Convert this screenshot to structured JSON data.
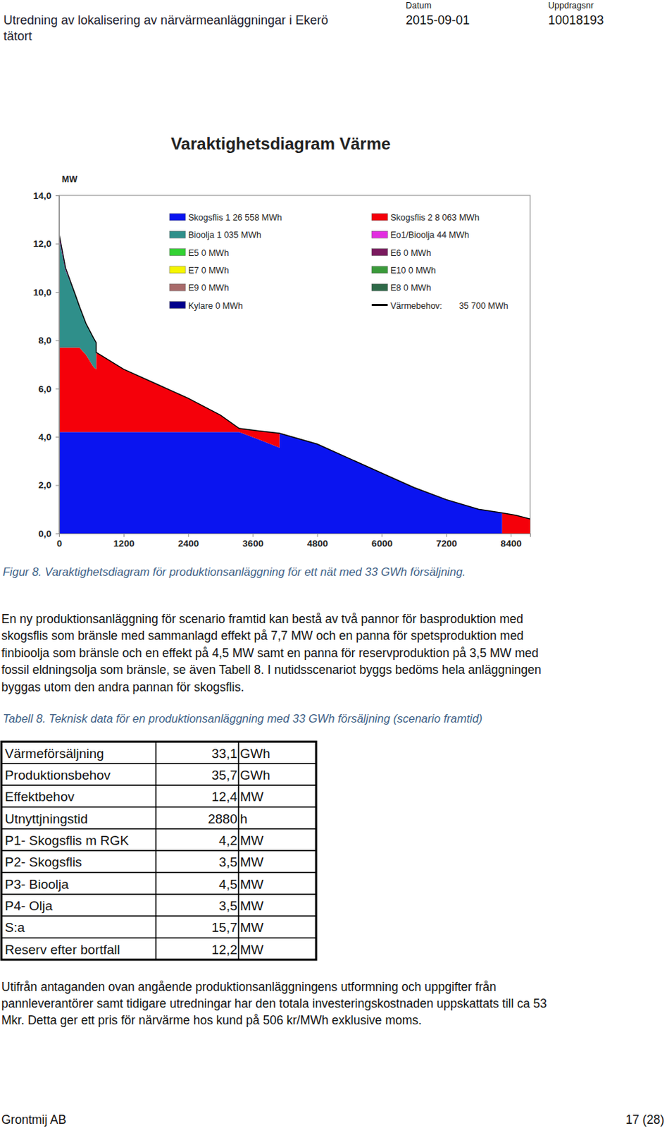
{
  "header": {
    "title_lines": [
      "Utredning av lokalisering av närvärmeanläggningar i Ekerö",
      "tätort"
    ],
    "date_label": "Datum",
    "date": "2015-09-01",
    "assignment_label": "Uppdragsnr",
    "assignment": "10018193"
  },
  "chart_data": {
    "type": "area",
    "stacked": true,
    "title": "Varaktighetsdiagram Värme",
    "y_label": "MW",
    "legend": "top-right",
    "grid": false,
    "xlim": [
      0,
      8760
    ],
    "ylim": [
      0,
      14
    ],
    "xticks": [
      0,
      1200,
      2400,
      3600,
      4800,
      6000,
      7200,
      8400
    ],
    "yticks": [
      {
        "value": 0,
        "label": "0,0"
      },
      {
        "value": 2,
        "label": "2,0"
      },
      {
        "value": 4,
        "label": "4,0"
      },
      {
        "value": 6,
        "label": "6,0"
      },
      {
        "value": 8,
        "label": "8,0"
      },
      {
        "value": 10,
        "label": "10,0"
      },
      {
        "value": 12,
        "label": "12,0"
      },
      {
        "value": 14,
        "label": "14,0"
      }
    ],
    "x": [
      0,
      120,
      300,
      380,
      500,
      640,
      690,
      690,
      1200,
      1800,
      2400,
      3000,
      3350,
      3700,
      4100,
      4100,
      4800,
      5400,
      6000,
      6600,
      7200,
      7800,
      8240,
      8240,
      8500,
      8760
    ],
    "series": [
      {
        "name": "Skogsflis 1 26 558 MWh",
        "color": "#0a14f0",
        "values": [
          4.2,
          4.2,
          4.2,
          4.2,
          4.2,
          4.2,
          4.2,
          4.2,
          4.2,
          4.2,
          4.2,
          4.2,
          4.2,
          3.9,
          3.55,
          4.15,
          3.7,
          3.1,
          2.5,
          1.9,
          1.4,
          1.0,
          0.85,
          0,
          0,
          0
        ]
      },
      {
        "name": "Skogsflis 2 8 063 MWh",
        "color": "#f5000a",
        "values": [
          3.5,
          3.5,
          3.5,
          3.5,
          3.2,
          2.7,
          2.6,
          3.3,
          2.6,
          2.0,
          1.4,
          0.7,
          0.15,
          0.35,
          0.6,
          0,
          0,
          0,
          0,
          0,
          0,
          0,
          0,
          0.85,
          0.75,
          0.6
        ]
      },
      {
        "name": "Bioolja 1 035 MWh",
        "color": "#2f8f8a",
        "values": [
          4.5,
          3.2,
          2.2,
          1.7,
          1.3,
          1.2,
          1.1,
          0,
          0,
          0,
          0,
          0,
          0,
          0,
          0,
          0,
          0,
          0,
          0,
          0,
          0,
          0,
          0,
          0,
          0,
          0
        ]
      },
      {
        "name": "Eo1/Bioolja 44 MWh",
        "color": "#e22ee0",
        "values": [
          0.2,
          0.1,
          0,
          0,
          0,
          0,
          0,
          0,
          0,
          0,
          0,
          0,
          0,
          0,
          0,
          0,
          0,
          0,
          0,
          0,
          0,
          0,
          0,
          0,
          0,
          0
        ]
      },
      {
        "name": "E5 0 MWh",
        "color": "#33d233",
        "values": [
          0,
          0,
          0,
          0,
          0,
          0,
          0,
          0,
          0,
          0,
          0,
          0,
          0,
          0,
          0,
          0,
          0,
          0,
          0,
          0,
          0,
          0,
          0,
          0,
          0,
          0
        ]
      },
      {
        "name": "E6 0 MWh",
        "color": "#7a1a5e",
        "values": [
          0,
          0,
          0,
          0,
          0,
          0,
          0,
          0,
          0,
          0,
          0,
          0,
          0,
          0,
          0,
          0,
          0,
          0,
          0,
          0,
          0,
          0,
          0,
          0,
          0,
          0
        ]
      },
      {
        "name": "E7 0 MWh",
        "color": "#f5f500",
        "values": [
          0,
          0,
          0,
          0,
          0,
          0,
          0,
          0,
          0,
          0,
          0,
          0,
          0,
          0,
          0,
          0,
          0,
          0,
          0,
          0,
          0,
          0,
          0,
          0,
          0,
          0
        ]
      },
      {
        "name": "E10 0 MWh",
        "color": "#3a9a3a",
        "values": [
          0,
          0,
          0,
          0,
          0,
          0,
          0,
          0,
          0,
          0,
          0,
          0,
          0,
          0,
          0,
          0,
          0,
          0,
          0,
          0,
          0,
          0,
          0,
          0,
          0,
          0
        ]
      },
      {
        "name": "E9 0 MWh",
        "color": "#a86a6a",
        "values": [
          0,
          0,
          0,
          0,
          0,
          0,
          0,
          0,
          0,
          0,
          0,
          0,
          0,
          0,
          0,
          0,
          0,
          0,
          0,
          0,
          0,
          0,
          0,
          0,
          0,
          0
        ]
      },
      {
        "name": "E8 0 MWh",
        "color": "#2e6a48",
        "values": [
          0,
          0,
          0,
          0,
          0,
          0,
          0,
          0,
          0,
          0,
          0,
          0,
          0,
          0,
          0,
          0,
          0,
          0,
          0,
          0,
          0,
          0,
          0,
          0,
          0,
          0
        ]
      },
      {
        "name": "Kylare 0 MWh",
        "color": "#00008c",
        "values": [
          0,
          0,
          0,
          0,
          0,
          0,
          0,
          0,
          0,
          0,
          0,
          0,
          0,
          0,
          0,
          0,
          0,
          0,
          0,
          0,
          0,
          0,
          0,
          0,
          0,
          0
        ]
      },
      {
        "name": "Värmebehov:       35 700 MWh",
        "color": "#000000",
        "type": "line",
        "values": [
          12.4,
          11.0,
          9.9,
          9.4,
          8.7,
          8.1,
          7.9,
          7.5,
          6.8,
          6.2,
          5.6,
          4.9,
          4.35,
          4.25,
          4.15,
          4.15,
          3.7,
          3.1,
          2.5,
          1.9,
          1.4,
          1.0,
          0.85,
          0.85,
          0.75,
          0.6
        ]
      }
    ]
  },
  "figure_caption": "Figur 8. Varaktighetsdiagram för produktionsanläggning för ett nät med 33 GWh försäljning.",
  "paragraphs": [
    [
      "En ny produktionsanläggning för scenario framtid kan bestå av två pannor för basproduktion med",
      "skogsflis som bränsle med sammanlagd effekt på 7,7 MW och en panna för spetsproduktion med",
      "finbioolja som bränsle och en effekt på 4,5 MW samt en panna för reservproduktion på 3,5 MW med",
      "fossil eldningsolja som bränsle, se även Tabell 8. I nutidsscenariot byggs bedöms hela anläggningen",
      "byggas utom den andra pannan för skogsflis."
    ],
    [
      "Utifrån antaganden ovan angående produktionsanläggningens utformning och uppgifter från",
      "pannleverantörer samt tidigare utredningar har den totala investeringskostnaden uppskattats till ca 53",
      "Mkr. Detta ger ett pris för närvärme hos kund på 506 kr/MWh exklusive moms."
    ]
  ],
  "table_caption": "Tabell 8. Teknisk data för en produktionsanläggning med 33 GWh försäljning (scenario framtid)",
  "table": {
    "rows": [
      [
        "Värmeförsäljning",
        "33,1",
        "GWh"
      ],
      [
        "Produktionsbehov",
        "35,7",
        "GWh"
      ],
      [
        "Effektbehov",
        "12,4",
        "MW"
      ],
      [
        "Utnyttjningstid",
        "2880",
        "h"
      ],
      [
        "P1- Skogsflis m RGK",
        "4,2",
        "MW"
      ],
      [
        "P2- Skogsflis",
        "3,5",
        "MW"
      ],
      [
        "P3- Bioolja",
        "4,5",
        "MW"
      ],
      [
        "P4- Olja",
        "3,5",
        "MW"
      ],
      [
        "S:a",
        "15,7",
        "MW"
      ],
      [
        "Reserv efter bortfall",
        "12,2",
        "MW"
      ]
    ]
  },
  "footer": {
    "left": "Grontmij AB",
    "right": "17 (28)"
  }
}
